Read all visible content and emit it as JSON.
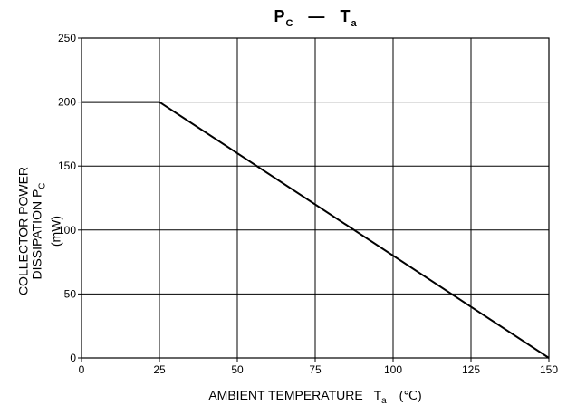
{
  "chart_data": {
    "type": "line",
    "title": {
      "main_left": "P",
      "main_left_sub": "C",
      "dash": "—",
      "main_right": "T",
      "main_right_sub": "a"
    },
    "ylabel": {
      "line1": "COLLECTOR POWER",
      "line2": "DISSIPATION P",
      "line2_sub": "C",
      "line3": "(mW)"
    },
    "xlabel": {
      "text": "AMBIENT TEMPERATURE",
      "var": "T",
      "var_sub": "a",
      "unit": "(℃)"
    },
    "x_ticks": [
      "0",
      "25",
      "50",
      "75",
      "100",
      "125",
      "150"
    ],
    "y_ticks": [
      "0",
      "50",
      "100",
      "150",
      "200",
      "250"
    ],
    "xlim": [
      0,
      150
    ],
    "ylim": [
      0,
      250
    ],
    "grid": true,
    "series": [
      {
        "x": [
          0,
          25,
          150
        ],
        "y": [
          200,
          200,
          0
        ],
        "color": "#000000"
      }
    ]
  }
}
